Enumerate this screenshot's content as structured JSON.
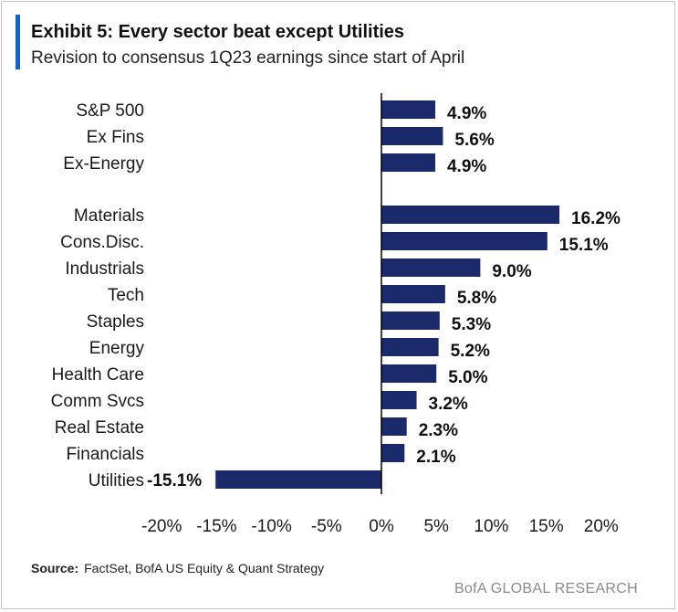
{
  "header": {
    "title": "Exhibit 5: Every sector beat except Utilities",
    "subtitle": "Revision to consensus 1Q23 earnings since start of April"
  },
  "footer": {
    "source_label": "Source:",
    "source_text": "FactSet, BofA US Equity & Quant Strategy",
    "brand": "BofA GLOBAL RESEARCH"
  },
  "colors": {
    "bar": "#1b2a6b",
    "accent": "#1565c0",
    "axis": "#000000"
  },
  "chart_data": {
    "type": "bar",
    "orientation": "horizontal",
    "categories": [
      "S&P 500",
      "Ex Fins",
      "Ex-Energy",
      "Materials",
      "Cons.Disc.",
      "Industrials",
      "Tech",
      "Staples",
      "Energy",
      "Health Care",
      "Comm Svcs",
      "Real Estate",
      "Financials",
      "Utilities"
    ],
    "values": [
      4.9,
      5.6,
      4.9,
      16.2,
      15.1,
      9.0,
      5.8,
      5.3,
      5.2,
      5.0,
      3.2,
      2.3,
      2.1,
      -15.1
    ],
    "value_labels": [
      "4.9%",
      "5.6%",
      "4.9%",
      "16.2%",
      "15.1%",
      "9.0%",
      "5.8%",
      "5.3%",
      "5.2%",
      "5.0%",
      "3.2%",
      "2.3%",
      "2.1%",
      "-15.1%"
    ],
    "xlim": [
      -20,
      20
    ],
    "xticks": [
      -20,
      -15,
      -10,
      -5,
      0,
      5,
      10,
      15,
      20
    ],
    "xtick_labels": [
      "-20%",
      "-15%",
      "-10%",
      "-5%",
      "0%",
      "5%",
      "10%",
      "15%",
      "20%"
    ],
    "title": "Exhibit 5: Every sector beat except Utilities",
    "subtitle": "Revision to consensus 1Q23 earnings since start of April",
    "xlabel": "",
    "ylabel": "",
    "grid": false,
    "legend": "none"
  }
}
